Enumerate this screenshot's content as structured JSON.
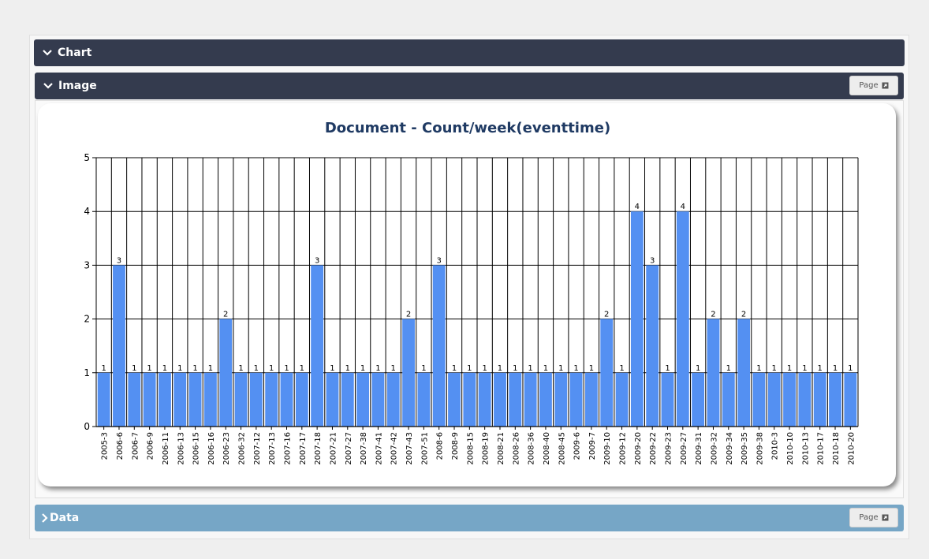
{
  "panels": {
    "chart": {
      "title": "Chart"
    },
    "image": {
      "title": "Image",
      "page_label": "Page"
    },
    "data": {
      "title": "Data",
      "page_label": "Page"
    }
  },
  "colors": {
    "bar": "#5490f2",
    "header_dark": "#343b4e",
    "header_blue": "#76a6c6",
    "title": "#1f3a63"
  },
  "chart_data": {
    "type": "bar",
    "title": "Document - Count/week(eventtime)",
    "ylim": [
      0,
      5
    ],
    "yticks": [
      0,
      1,
      2,
      3,
      4,
      5
    ],
    "grid": true,
    "legend": "none",
    "categories": [
      "2005-3",
      "2006-6",
      "2006-7",
      "2006-9",
      "2006-11",
      "2006-13",
      "2006-15",
      "2006-16",
      "2006-23",
      "2006-32",
      "2007-12",
      "2007-13",
      "2007-16",
      "2007-17",
      "2007-18",
      "2007-21",
      "2007-27",
      "2007-38",
      "2007-41",
      "2007-42",
      "2007-43",
      "2007-51",
      "2008-6",
      "2008-9",
      "2008-15",
      "2008-19",
      "2008-21",
      "2008-26",
      "2008-36",
      "2008-40",
      "2008-45",
      "2009-6",
      "2009-7",
      "2009-10",
      "2009-12",
      "2009-20",
      "2009-22",
      "2009-23",
      "2009-27",
      "2009-31",
      "2009-32",
      "2009-34",
      "2009-35",
      "2009-38",
      "2010-3",
      "2010-10",
      "2010-13",
      "2010-17",
      "2010-18",
      "2010-20"
    ],
    "values": [
      1,
      3,
      1,
      1,
      1,
      1,
      1,
      1,
      2,
      1,
      1,
      1,
      1,
      1,
      3,
      1,
      1,
      1,
      1,
      1,
      2,
      1,
      3,
      1,
      1,
      1,
      1,
      1,
      1,
      1,
      1,
      1,
      1,
      2,
      1,
      4,
      3,
      1,
      4,
      1,
      2,
      1,
      2,
      1,
      1,
      1,
      1,
      1,
      1,
      1
    ]
  }
}
